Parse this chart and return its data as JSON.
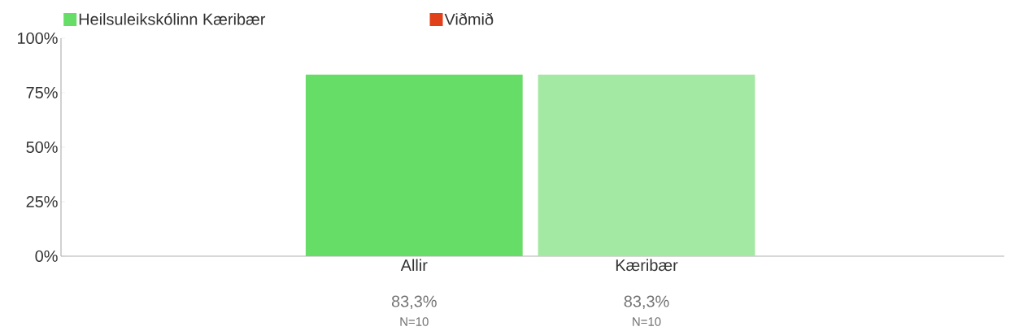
{
  "chart_data": {
    "type": "bar",
    "categories": [
      "Allir",
      "Kæribær"
    ],
    "series": [
      {
        "name": "Heilsuleikskólinn Kæribær",
        "color": "#66dd66",
        "colors": [
          "#66dd66",
          "#a3e8a3"
        ],
        "values": [
          83.3,
          83.3
        ],
        "value_labels": [
          "83,3%",
          "83,3%"
        ]
      },
      {
        "name": "Viðmið",
        "color": "#e0401a",
        "values": [
          null,
          null
        ]
      }
    ],
    "ylim": [
      0,
      100
    ],
    "yticks": [
      {
        "value": 0,
        "label": "0%"
      },
      {
        "value": 25,
        "label": "25%"
      },
      {
        "value": 50,
        "label": "50%"
      },
      {
        "value": 75,
        "label": "75%"
      },
      {
        "value": 100,
        "label": "100%"
      }
    ],
    "annotations": [
      "N=10",
      "N=10"
    ],
    "legend": "top left",
    "grid": false
  }
}
